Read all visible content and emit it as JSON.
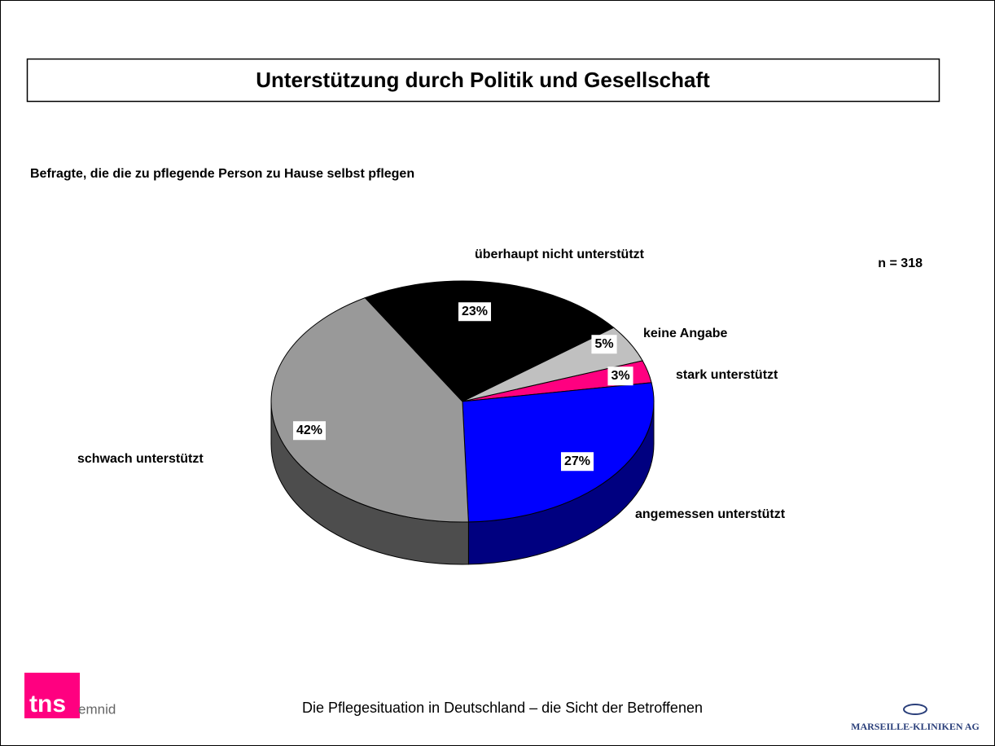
{
  "chart_data": {
    "type": "pie",
    "title": "Unterstützung durch Politik und Gesellschaft",
    "subtitle": "Befragte, die die zu pflegende Person zu Hause selbst pflegen",
    "annotation": "n = 318",
    "categories": [
      "stark unterstützt",
      "angemessen unterstützt",
      "schwach unterstützt",
      "überhaupt nicht unterstützt",
      "keine Angabe"
    ],
    "values": [
      3,
      27,
      42,
      23,
      5
    ],
    "value_labels": [
      "3%",
      "27%",
      "42%",
      "23%",
      "5%"
    ],
    "colors": [
      "#ff0080",
      "#0000ff",
      "#999999",
      "#000000",
      "#c0c0c0"
    ],
    "side_colors": [
      "#99004d",
      "#000080",
      "#4d4d4d",
      "#000000",
      "#808080"
    ]
  },
  "footer": {
    "text": "Die Pflegesituation in Deutschland – die Sicht der Betroffenen",
    "logo_left": [
      "tns",
      "emnid"
    ],
    "logo_right": "MARSEILLE-KLINIKEN AG"
  }
}
